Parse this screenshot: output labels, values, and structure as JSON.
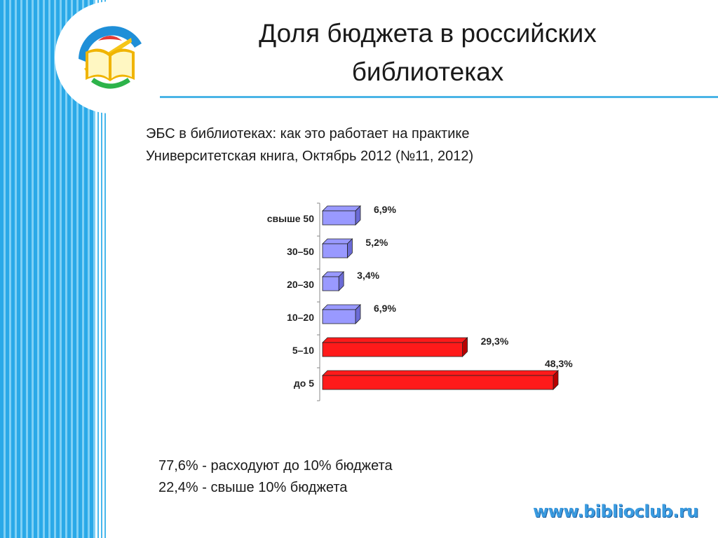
{
  "slide": {
    "title_line1": "Доля бюджета в российских",
    "title_line2": "библиотеках",
    "subtitle_line1": "ЭБС в библиотеках: как это работает на практике",
    "subtitle_line2": "Университетская книга, Октябрь 2012 (№11, 2012)",
    "summary_line1": "77,6% - расходуют до 10% бюджета",
    "summary_line2": "22,4% - свыше 10% бюджета",
    "footer_url": "www.biblioclub.ru"
  },
  "colors": {
    "bar_light": "#9999ff",
    "bar_light_side": "#6b6bd6",
    "bar_red": "#ff1a1a",
    "bar_red_side": "#b80000",
    "accent_blue": "#2aa9e8"
  },
  "chart_data": {
    "type": "bar",
    "orientation": "horizontal",
    "style": "3d",
    "categories": [
      "свыше 50",
      "30–50",
      "20–30",
      "10–20",
      "5–10",
      "до 5"
    ],
    "values": [
      6.9,
      5.2,
      3.4,
      6.9,
      29.3,
      48.3
    ],
    "value_labels": [
      "6,9%",
      "5,2%",
      "3,4%",
      "6,9%",
      "29,3%",
      "48,3%"
    ],
    "bar_colors": [
      "light",
      "light",
      "light",
      "light",
      "red",
      "red"
    ],
    "xlim": [
      0,
      48.3
    ],
    "grid": false,
    "legend": "none"
  }
}
